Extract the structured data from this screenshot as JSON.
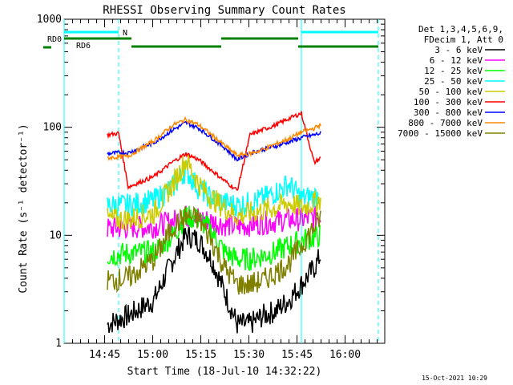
{
  "chart_data": {
    "type": "line",
    "title": "RHESSI Observing Summary Count Rates",
    "xlabel": "Start Time (18-Jul-10 14:32:22)",
    "ylabel": "Count Rate (s⁻¹ detector⁻¹)",
    "yscale": "log",
    "ylim": [
      1,
      1000
    ],
    "xlim_minutes": [
      0,
      100
    ],
    "x_tick_labels": [
      "14:45",
      "15:00",
      "15:15",
      "15:30",
      "15:45",
      "16:00"
    ],
    "x_tick_minutes": [
      12.63,
      27.63,
      42.63,
      57.63,
      72.63,
      87.63
    ],
    "y_tick_labels": [
      "1",
      "10",
      "100",
      "1000"
    ],
    "y_tick_values": [
      1,
      10,
      100,
      1000
    ],
    "grid": false,
    "legend_position": "right",
    "legend_header": [
      "Det 1,3,4,5,6,9,",
      "FDecim 1, Att 0"
    ],
    "footer_date": "15-Oct-2021 10:29",
    "flags": [
      {
        "label": "N",
        "color": "#00ffff",
        "segments_minutes": [
          [
            0,
            17
          ],
          [
            74,
            98
          ]
        ]
      },
      {
        "label": "RD0",
        "color": "#008000",
        "segments_minutes": [
          [
            0,
            21
          ],
          [
            49,
            73
          ]
        ]
      },
      {
        "label": "RD6",
        "color": "#008000",
        "segments_minutes": [
          [
            21,
            49
          ],
          [
            73,
            98
          ]
        ]
      }
    ],
    "vlines": [
      {
        "minute": 0,
        "color": "#00ffff",
        "style": "solid"
      },
      {
        "minute": 17,
        "color": "#00ffff",
        "style": "dashed"
      },
      {
        "minute": 74,
        "color": "#00ffff",
        "style": "solid"
      },
      {
        "minute": 98,
        "color": "#00ffff",
        "style": "dashed"
      }
    ],
    "data_interval_minutes": [
      13.5,
      80.0
    ],
    "series": [
      {
        "name": "3 - 6 keV",
        "color": "#000000",
        "x": [
          13.5,
          20,
          28,
          34,
          38,
          42,
          46,
          50,
          54,
          58,
          62,
          66,
          70,
          74,
          78,
          80
        ],
        "y": [
          1.5,
          1.8,
          2.5,
          6.0,
          10.0,
          9.0,
          6.0,
          3.0,
          1.5,
          1.5,
          1.8,
          2.0,
          2.5,
          3.5,
          5.0,
          6.5
        ]
      },
      {
        "name": "6 - 12 keV",
        "color": "#ff00ff",
        "x": [
          13.5,
          20,
          28,
          34,
          38,
          42,
          46,
          50,
          54,
          58,
          62,
          66,
          70,
          74,
          78,
          80
        ],
        "y": [
          11.5,
          11.8,
          12.0,
          13.5,
          15.0,
          14.5,
          13.5,
          12.5,
          12.0,
          12.5,
          13.0,
          13.5,
          14.0,
          14.0,
          14.5,
          15.0
        ]
      },
      {
        "name": "12 - 25 keV",
        "color": "#00ff00",
        "x": [
          13.5,
          20,
          28,
          34,
          38,
          42,
          46,
          50,
          54,
          58,
          62,
          66,
          70,
          74,
          78,
          80
        ],
        "y": [
          6.5,
          6.8,
          7.0,
          10.0,
          15.0,
          14.0,
          11.0,
          7.0,
          6.0,
          6.0,
          6.5,
          7.0,
          8.0,
          9.0,
          9.5,
          10.0
        ]
      },
      {
        "name": "25 - 50 keV",
        "color": "#00ffff",
        "x": [
          13.5,
          20,
          28,
          34,
          38,
          42,
          46,
          50,
          54,
          58,
          62,
          66,
          70,
          74,
          78,
          80
        ],
        "y": [
          19,
          19,
          21,
          28,
          40,
          27,
          22,
          20,
          19,
          20,
          22,
          25,
          30,
          22,
          23,
          24
        ]
      },
      {
        "name": "50 - 100 keV",
        "color": "#cccc00",
        "x": [
          13.5,
          20,
          28,
          34,
          38,
          42,
          46,
          50,
          54,
          58,
          62,
          66,
          70,
          74,
          78,
          80
        ],
        "y": [
          14,
          14,
          16,
          30,
          50,
          30,
          22,
          18,
          15,
          16,
          17,
          18,
          20,
          18,
          20,
          22
        ]
      },
      {
        "name": "100 - 300 keV",
        "color": "#ff0000",
        "x": [
          13.5,
          17,
          20,
          28,
          34,
          38,
          42,
          46,
          50,
          54,
          58,
          62,
          66,
          70,
          74,
          78,
          80
        ],
        "y": [
          85,
          88,
          28,
          35,
          48,
          57,
          50,
          40,
          32,
          26,
          85,
          95,
          105,
          120,
          135,
          47,
          52
        ]
      },
      {
        "name": "300 - 800 keV",
        "color": "#0000ff",
        "x": [
          13.5,
          17,
          20,
          28,
          34,
          38,
          42,
          46,
          50,
          54,
          58,
          62,
          66,
          70,
          74,
          78,
          80
        ],
        "y": [
          57,
          58,
          58,
          72,
          95,
          110,
          98,
          80,
          65,
          50,
          58,
          62,
          67,
          73,
          80,
          85,
          88
        ]
      },
      {
        "name": "800 - 7000 keV",
        "color": "#ff8800",
        "x": [
          13.5,
          17,
          20,
          28,
          34,
          38,
          42,
          46,
          50,
          54,
          58,
          62,
          66,
          70,
          74,
          78,
          80
        ],
        "y": [
          52,
          53,
          54,
          75,
          105,
          118,
          105,
          85,
          68,
          55,
          57,
          62,
          70,
          78,
          90,
          98,
          105
        ]
      },
      {
        "name": "7000 - 15000 keV",
        "color": "#808000",
        "x": [
          13.5,
          20,
          28,
          34,
          38,
          42,
          46,
          50,
          54,
          58,
          62,
          66,
          70,
          74,
          78,
          80
        ],
        "y": [
          3.8,
          4.0,
          6.0,
          12.0,
          15.0,
          14.0,
          9.0,
          5.0,
          3.5,
          3.5,
          3.8,
          4.5,
          5.5,
          8.0,
          12.0,
          14.5
        ]
      }
    ]
  }
}
